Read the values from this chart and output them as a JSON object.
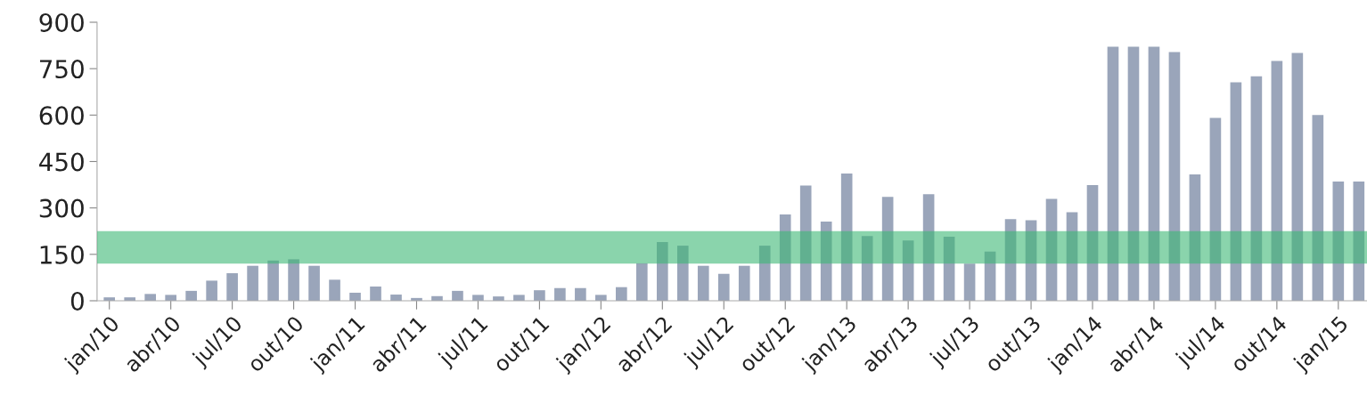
{
  "chart_data": {
    "type": "bar",
    "categories": [
      "jan/10",
      null,
      null,
      "abr/10",
      null,
      null,
      "jul/10",
      null,
      null,
      "out/10",
      null,
      null,
      "jan/11",
      null,
      null,
      "abr/11",
      null,
      null,
      "jul/11",
      null,
      null,
      "out/11",
      null,
      null,
      "jan/12",
      null,
      null,
      "abr/12",
      null,
      null,
      "jul/12",
      null,
      null,
      "out/12",
      null,
      null,
      "jan/13",
      null,
      null,
      "abr/13",
      null,
      null,
      "jul/13",
      null,
      null,
      "out/13",
      null,
      null,
      "jan/14",
      null,
      null,
      "abr/14",
      null,
      null,
      "jul/14",
      null,
      null,
      "out/14",
      null,
      null,
      "jan/15",
      null
    ],
    "values": [
      11,
      11,
      22,
      19,
      32,
      65,
      89,
      113,
      130,
      134,
      113,
      68,
      26,
      46,
      20,
      9,
      15,
      32,
      19,
      14,
      19,
      34,
      41,
      41,
      19,
      44,
      121,
      190,
      178,
      113,
      87,
      113,
      178,
      279,
      372,
      256,
      411,
      209,
      336,
      195,
      344,
      207,
      120,
      159,
      264,
      260,
      329,
      286,
      374,
      821,
      821,
      821,
      804,
      408,
      591,
      706,
      725,
      775,
      801,
      600,
      385,
      385
    ],
    "color": "#9aa5ba",
    "ylim": [
      0,
      900
    ],
    "yticks": [
      0,
      150,
      300,
      450,
      600,
      750,
      900
    ],
    "bands": [
      {
        "axis": "y",
        "from": 120,
        "to": 225,
        "color": "#3cb874"
      }
    ],
    "grid": false
  }
}
